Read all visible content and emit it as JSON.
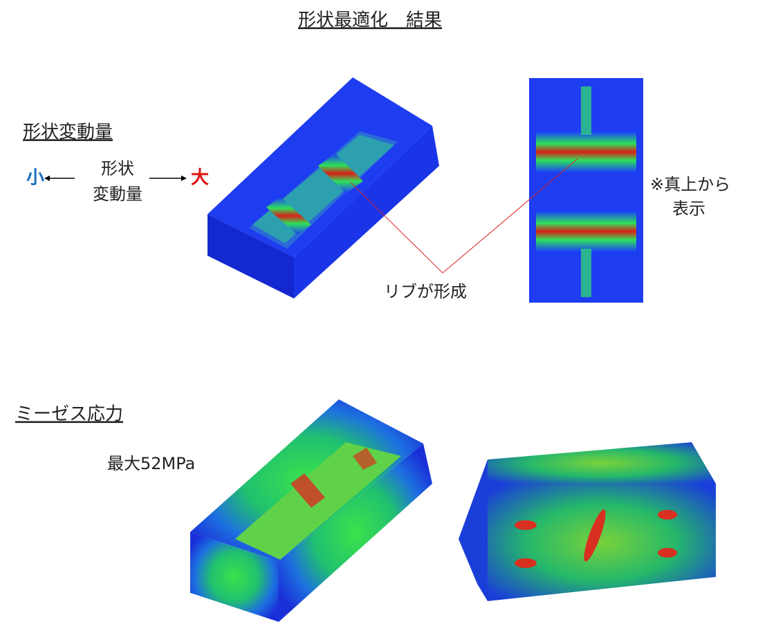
{
  "title": "形状最適化　結果",
  "shape_change": {
    "heading": "形状変動量",
    "legend": {
      "min": "小",
      "label": [
        "形状",
        "変動量"
      ],
      "max": "大"
    }
  },
  "annotations": {
    "rib": "リブが形成",
    "top_view": [
      "※真上から",
      "表示"
    ]
  },
  "stress": {
    "heading": "ミーゼス応力",
    "max": "最大52MPa"
  }
}
